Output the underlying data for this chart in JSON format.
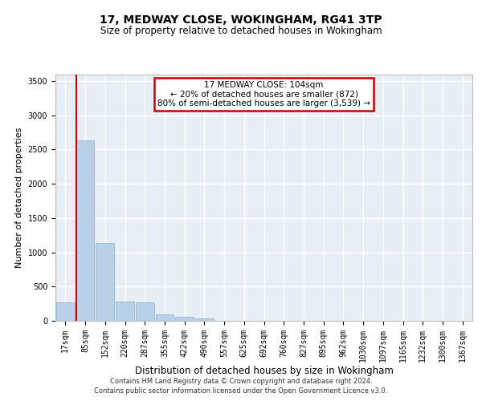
{
  "title1": "17, MEDWAY CLOSE, WOKINGHAM, RG41 3TP",
  "title2": "Size of property relative to detached houses in Wokingham",
  "xlabel": "Distribution of detached houses by size in Wokingham",
  "ylabel": "Number of detached properties",
  "footer1": "Contains HM Land Registry data © Crown copyright and database right 2024.",
  "footer2": "Contains public sector information licensed under the Open Government Licence v3.0.",
  "annotation_line1": "17 MEDWAY CLOSE: 104sqm",
  "annotation_line2": "← 20% of detached houses are smaller (872)",
  "annotation_line3": "80% of semi-detached houses are larger (3,539) →",
  "bar_color": "#b8d0e8",
  "bar_edge_color": "#8aaecc",
  "vline_color": "#cc0000",
  "categories": [
    "17sqm",
    "85sqm",
    "152sqm",
    "220sqm",
    "287sqm",
    "355sqm",
    "422sqm",
    "490sqm",
    "557sqm",
    "625sqm",
    "692sqm",
    "760sqm",
    "827sqm",
    "895sqm",
    "962sqm",
    "1030sqm",
    "1097sqm",
    "1165sqm",
    "1232sqm",
    "1300sqm",
    "1367sqm"
  ],
  "values": [
    270,
    2640,
    1140,
    280,
    275,
    90,
    55,
    35,
    5,
    3,
    2,
    1,
    1,
    0,
    0,
    0,
    0,
    0,
    0,
    0,
    0
  ],
  "ylim": [
    0,
    3600
  ],
  "yticks": [
    0,
    500,
    1000,
    1500,
    2000,
    2500,
    3000,
    3500
  ],
  "background_color": "#e8eef5",
  "grid_color": "#ffffff",
  "fig_bg": "#ffffff",
  "title1_fontsize": 10,
  "title2_fontsize": 8.5,
  "ylabel_fontsize": 8,
  "xlabel_fontsize": 8.5,
  "tick_fontsize": 7,
  "footer_fontsize": 6,
  "annot_fontsize": 7.5
}
